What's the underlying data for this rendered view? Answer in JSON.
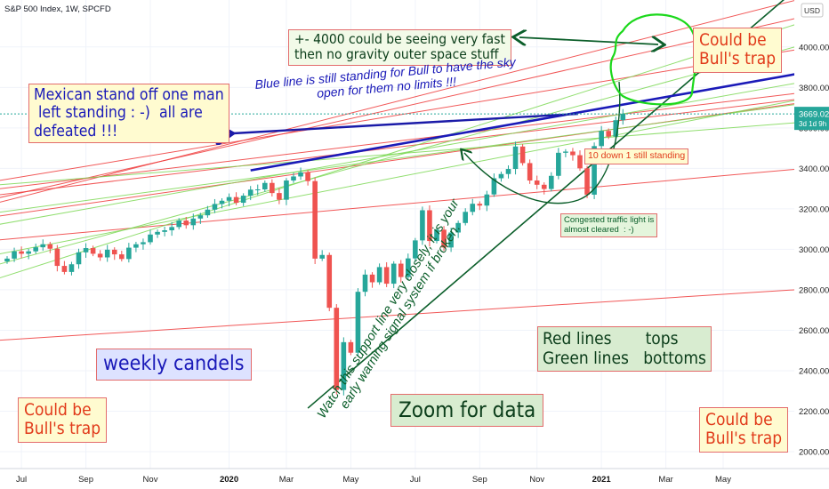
{
  "chart_data": {
    "type": "candlestick",
    "title": "S&P 500 Index, 1W, SPCFD",
    "currency": "USD",
    "ylim": [
      1920,
      4200
    ],
    "y_ticks": [
      2000,
      2200,
      2400,
      2600,
      2800,
      3000,
      3200,
      3400,
      3600,
      3800,
      4000
    ],
    "x_ticks": [
      {
        "label": "Jul",
        "bold": false
      },
      {
        "label": "Sep",
        "bold": false
      },
      {
        "label": "Nov",
        "bold": false
      },
      {
        "label": "2020",
        "bold": true
      },
      {
        "label": "Mar",
        "bold": false
      },
      {
        "label": "May",
        "bold": false
      },
      {
        "label": "Jul",
        "bold": false
      },
      {
        "label": "Sep",
        "bold": false
      },
      {
        "label": "Nov",
        "bold": false
      },
      {
        "label": "2021",
        "bold": true
      },
      {
        "label": "Mar",
        "bold": false
      },
      {
        "label": "May",
        "bold": false
      }
    ],
    "x_tick_weeks": [
      2,
      11,
      20,
      31,
      39,
      48,
      57,
      66,
      74,
      83,
      92,
      100
    ],
    "last_price": {
      "value": 3669.02,
      "label": "3669.02",
      "countdown": "3d 1d 9h"
    },
    "candles": [
      [
        2940,
        2954
      ],
      [
        2954,
        2990
      ],
      [
        2990,
        2978
      ],
      [
        2978,
        2990
      ],
      [
        2990,
        3010
      ],
      [
        3010,
        3025
      ],
      [
        3025,
        3003
      ],
      [
        3003,
        2918
      ],
      [
        2918,
        2888
      ],
      [
        2888,
        2926
      ],
      [
        2926,
        2985
      ],
      [
        2985,
        3006
      ],
      [
        3006,
        2978
      ],
      [
        2978,
        2960
      ],
      [
        2960,
        2998
      ],
      [
        2998,
        2975
      ],
      [
        2975,
        2952
      ],
      [
        2952,
        3008
      ],
      [
        3008,
        3025
      ],
      [
        3025,
        3035
      ],
      [
        3035,
        3073
      ],
      [
        3073,
        3086
      ],
      [
        3086,
        3094
      ],
      [
        3094,
        3110
      ],
      [
        3110,
        3142
      ],
      [
        3142,
        3119
      ],
      [
        3119,
        3152
      ],
      [
        3152,
        3168
      ],
      [
        3168,
        3196
      ],
      [
        3196,
        3224
      ],
      [
        3224,
        3240
      ],
      [
        3240,
        3258
      ],
      [
        3258,
        3230
      ],
      [
        3230,
        3265
      ],
      [
        3265,
        3295
      ],
      [
        3295,
        3296
      ],
      [
        3296,
        3328
      ],
      [
        3328,
        3278
      ],
      [
        3278,
        3245
      ],
      [
        3245,
        3340
      ],
      [
        3340,
        3360
      ],
      [
        3360,
        3380
      ],
      [
        3380,
        3337
      ],
      [
        3337,
        2954
      ],
      [
        2954,
        2972
      ],
      [
        2972,
        2711
      ],
      [
        2711,
        2305
      ],
      [
        2305,
        2541
      ],
      [
        2541,
        2489
      ],
      [
        2489,
        2790
      ],
      [
        2790,
        2875
      ],
      [
        2875,
        2837
      ],
      [
        2837,
        2912
      ],
      [
        2912,
        2830
      ],
      [
        2830,
        2929
      ],
      [
        2929,
        2863
      ],
      [
        2863,
        2955
      ],
      [
        2955,
        3044
      ],
      [
        3044,
        3193
      ],
      [
        3193,
        3041
      ],
      [
        3041,
        3097
      ],
      [
        3097,
        3009
      ],
      [
        3009,
        3083
      ],
      [
        3083,
        3130
      ],
      [
        3130,
        3185
      ],
      [
        3185,
        3225
      ],
      [
        3225,
        3216
      ],
      [
        3216,
        3271
      ],
      [
        3271,
        3351
      ],
      [
        3351,
        3372
      ],
      [
        3372,
        3397
      ],
      [
        3397,
        3508
      ],
      [
        3508,
        3426
      ],
      [
        3426,
        3340
      ],
      [
        3340,
        3319
      ],
      [
        3319,
        3298
      ],
      [
        3298,
        3363
      ],
      [
        3363,
        3477
      ],
      [
        3477,
        3483
      ],
      [
        3483,
        3465
      ],
      [
        3465,
        3400
      ],
      [
        3400,
        3270
      ],
      [
        3270,
        3510
      ],
      [
        3510,
        3585
      ],
      [
        3585,
        3557
      ],
      [
        3557,
        3638
      ],
      [
        3638,
        3669
      ]
    ],
    "trend_lines": [
      {
        "color": "red",
        "from": [
          -8,
          3170
        ],
        "to": [
          110,
          4230
        ]
      },
      {
        "color": "red",
        "from": [
          -8,
          3200
        ],
        "to": [
          110,
          4140
        ]
      },
      {
        "color": "red",
        "from": [
          -8,
          3300
        ],
        "to": [
          110,
          3985
        ]
      },
      {
        "color": "red",
        "from": [
          -8,
          3270
        ],
        "to": [
          110,
          3770
        ]
      },
      {
        "color": "red",
        "from": [
          -8,
          3240
        ],
        "to": [
          110,
          3740
        ]
      },
      {
        "color": "red",
        "from": [
          -8,
          3130
        ],
        "to": [
          110,
          3720
        ]
      },
      {
        "color": "red",
        "from": [
          -8,
          3025
        ],
        "to": [
          110,
          3395
        ]
      },
      {
        "color": "red",
        "from": [
          -8,
          2535
        ],
        "to": [
          110,
          2800
        ]
      },
      {
        "color": "green",
        "from": [
          -8,
          2780
        ],
        "to": [
          110,
          4110
        ]
      },
      {
        "color": "green",
        "from": [
          -8,
          2860
        ],
        "to": [
          110,
          4000
        ]
      },
      {
        "color": "green",
        "from": [
          -8,
          3080
        ],
        "to": [
          110,
          3820
        ]
      },
      {
        "color": "green",
        "from": [
          -8,
          3150
        ],
        "to": [
          110,
          3715
        ]
      },
      {
        "color": "green",
        "from": [
          -8,
          3300
        ],
        "to": [
          110,
          3625
        ]
      },
      {
        "color": "green",
        "from": [
          -8,
          2930
        ],
        "to": [
          110,
          3735
        ]
      },
      {
        "color": "dark-green",
        "from": [
          42,
          2215
        ],
        "to": [
          110,
          4280
        ]
      },
      {
        "color": "blue",
        "from": [
          34,
          3390
        ],
        "to": [
          110,
          3865
        ]
      }
    ],
    "colors": {
      "up": "#26a69a",
      "down": "#ef5350",
      "red_line": "#ef3b3b",
      "green_line": "#7ed957",
      "dark_green_line": "#0b5e2a",
      "blue_line": "#1a1ab8",
      "blue_arrow": "#1a1aa8",
      "annotation_green": "#0b5e2a",
      "price_badge": "#26a69a",
      "circle": "#1bd81b"
    }
  },
  "annotations": {
    "trap_top_right": "Could be\nBull's trap",
    "trap_bottom_left": "Could be\nBull's trap",
    "trap_bottom_right": "Could be\nBull's trap",
    "space_note": "+- 4000 could be seeing very fast\nthen no gravity outer space stuff",
    "mexican": "Mexican stand off one man\n left standing : -)  all are\ndefeated !!!",
    "blue_line_note": "Blue line is still standing for Bull to have the sky\nopen for them no limits !!!",
    "ten_down": "10 down 1 still standing",
    "congested": "Congested traffic light is\nalmost cleared  : -)",
    "red_green": "Red lines       tops\nGreen lines   bottoms",
    "weekly": "weekly candels",
    "zoom": "Zoom for data",
    "support": "Watch this support line very closely, it is your\nearly warning signal system if broken."
  }
}
